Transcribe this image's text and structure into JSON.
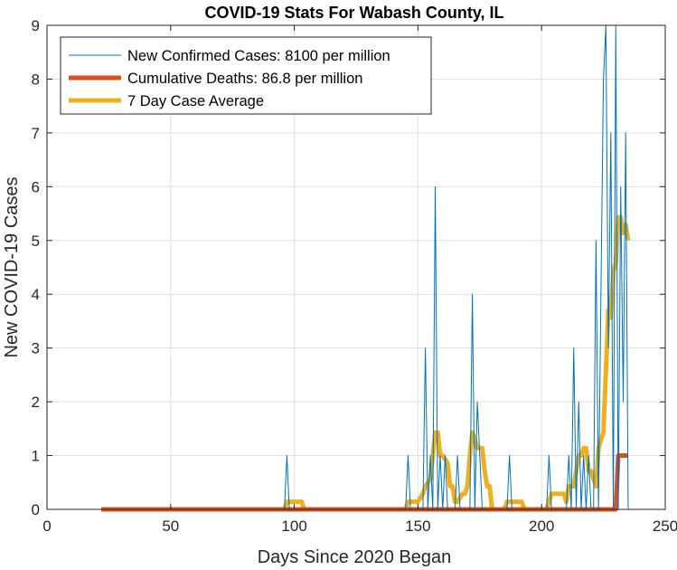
{
  "chart_data": {
    "type": "line",
    "title": "COVID-19 Stats For Wabash County, IL",
    "xlabel": "Days Since 2020 Began",
    "ylabel": "New COVID-19 Cases",
    "xlim": [
      0,
      250
    ],
    "ylim": [
      0,
      9
    ],
    "xticks": [
      0,
      50,
      100,
      150,
      200,
      250
    ],
    "yticks": [
      0,
      1,
      2,
      3,
      4,
      5,
      6,
      7,
      8,
      9
    ],
    "grid": true,
    "legend_position": "top-left",
    "series": [
      {
        "name": "New Confirmed Cases: 8100 per million",
        "color": "#0072BD",
        "style": "thin",
        "x": [
          22,
          96,
          97,
          98,
          145,
          146,
          147,
          152,
          153,
          154,
          155,
          156,
          157,
          158,
          159,
          160,
          161,
          162,
          165,
          166,
          167,
          171,
          172,
          173,
          174,
          175,
          176,
          180,
          186,
          187,
          188,
          202,
          203,
          204,
          210,
          211,
          212,
          213,
          214,
          215,
          216,
          217,
          218,
          219,
          220,
          221,
          222,
          223,
          224,
          225,
          226,
          227,
          228,
          229,
          230,
          231,
          232,
          233,
          234,
          235
        ],
        "y": [
          0,
          0,
          1,
          0,
          0,
          1,
          0,
          0,
          3,
          0,
          1,
          0,
          6,
          0,
          1,
          0,
          1,
          0,
          0,
          1,
          0,
          0,
          4,
          0,
          2,
          1,
          0,
          0,
          0,
          1,
          0,
          0,
          1,
          0,
          0,
          1,
          0,
          3,
          0,
          2,
          0,
          1,
          0,
          1,
          0,
          0,
          5,
          0,
          4,
          8,
          9,
          3,
          7,
          0,
          9,
          0,
          6,
          2,
          7,
          0
        ]
      },
      {
        "name": "Cumulative Deaths: 86.8 per million",
        "color": "#D95319",
        "style": "thick",
        "x": [
          22,
          230,
          231,
          235
        ],
        "y": [
          0,
          0,
          1,
          1
        ]
      },
      {
        "name": "7 Day Case Average",
        "color": "#EDB120",
        "style": "thick",
        "x": [
          22,
          96,
          97,
          103,
          104,
          145,
          146,
          150,
          152,
          153,
          155,
          156,
          157,
          158,
          159,
          160,
          162,
          163,
          164,
          165,
          166,
          168,
          169,
          170,
          171,
          172,
          173,
          174,
          175,
          176,
          177,
          178,
          179,
          180,
          185,
          186,
          187,
          192,
          193,
          194,
          202,
          203,
          204,
          205,
          209,
          210,
          211,
          212,
          213,
          214,
          215,
          216,
          217,
          218,
          219,
          220,
          221,
          222,
          223,
          224,
          225,
          226,
          227,
          228,
          229,
          230,
          231,
          232,
          233,
          234,
          235
        ],
        "y": [
          0,
          0,
          0.14,
          0.14,
          0,
          0,
          0.14,
          0.14,
          0.29,
          0.43,
          0.57,
          1.0,
          1.43,
          1.43,
          1.0,
          1.0,
          0.86,
          0.43,
          0.43,
          0.14,
          0.14,
          0.29,
          0.29,
          0.43,
          1.0,
          1.43,
          1.29,
          1.14,
          1.14,
          1.14,
          0.71,
          0.43,
          0.43,
          0,
          0,
          0.14,
          0.14,
          0.14,
          0,
          0,
          0,
          0.14,
          0.29,
          0.29,
          0.29,
          0.14,
          0.43,
          0.43,
          0.43,
          0.71,
          1.0,
          1.0,
          1.14,
          1.14,
          0.71,
          0.71,
          0.57,
          0.43,
          1.14,
          1.29,
          1.43,
          2.57,
          3.71,
          3.57,
          4.43,
          4.57,
          5.43,
          5.43,
          5.14,
          5.29,
          5.0
        ]
      }
    ]
  }
}
